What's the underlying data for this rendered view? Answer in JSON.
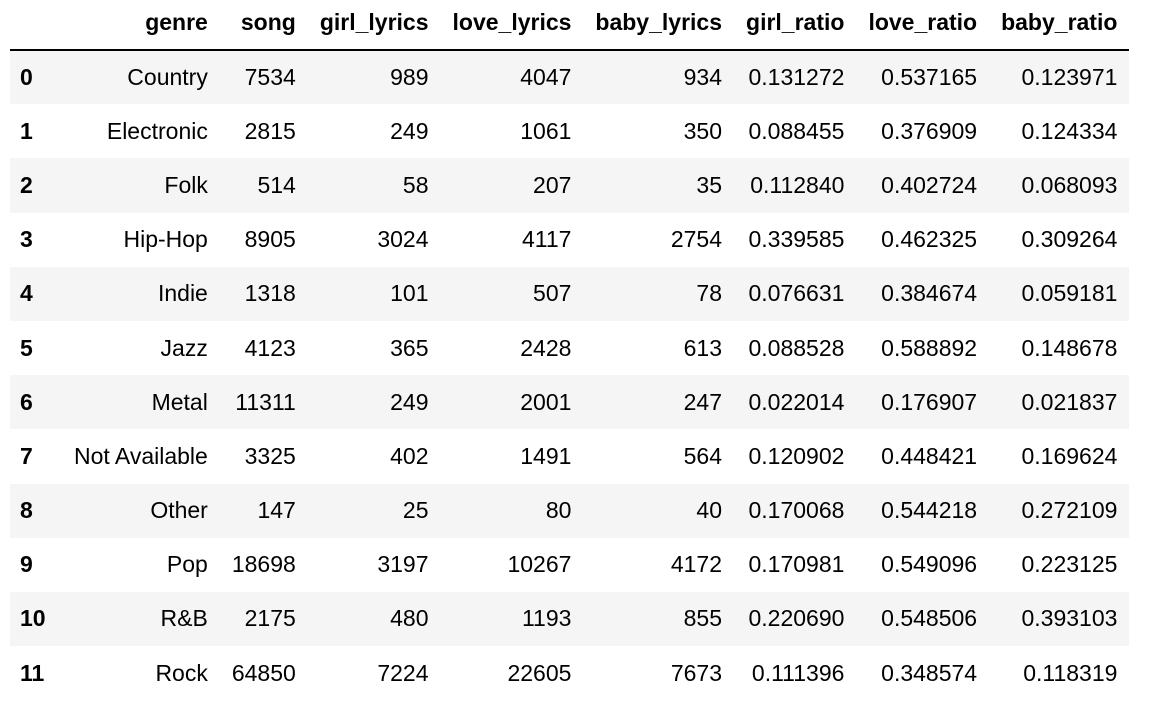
{
  "table": {
    "index_header": "",
    "columns": [
      "genre",
      "song",
      "girl_lyrics",
      "love_lyrics",
      "baby_lyrics",
      "girl_ratio",
      "love_ratio",
      "baby_ratio"
    ],
    "rows": [
      {
        "index": "0",
        "cells": [
          "Country",
          "7534",
          "989",
          "4047",
          "934",
          "0.131272",
          "0.537165",
          "0.123971"
        ]
      },
      {
        "index": "1",
        "cells": [
          "Electronic",
          "2815",
          "249",
          "1061",
          "350",
          "0.088455",
          "0.376909",
          "0.124334"
        ]
      },
      {
        "index": "2",
        "cells": [
          "Folk",
          "514",
          "58",
          "207",
          "35",
          "0.112840",
          "0.402724",
          "0.068093"
        ]
      },
      {
        "index": "3",
        "cells": [
          "Hip-Hop",
          "8905",
          "3024",
          "4117",
          "2754",
          "0.339585",
          "0.462325",
          "0.309264"
        ]
      },
      {
        "index": "4",
        "cells": [
          "Indie",
          "1318",
          "101",
          "507",
          "78",
          "0.076631",
          "0.384674",
          "0.059181"
        ]
      },
      {
        "index": "5",
        "cells": [
          "Jazz",
          "4123",
          "365",
          "2428",
          "613",
          "0.088528",
          "0.588892",
          "0.148678"
        ]
      },
      {
        "index": "6",
        "cells": [
          "Metal",
          "11311",
          "249",
          "2001",
          "247",
          "0.022014",
          "0.176907",
          "0.021837"
        ]
      },
      {
        "index": "7",
        "cells": [
          "Not Available",
          "3325",
          "402",
          "1491",
          "564",
          "0.120902",
          "0.448421",
          "0.169624"
        ]
      },
      {
        "index": "8",
        "cells": [
          "Other",
          "147",
          "25",
          "80",
          "40",
          "0.170068",
          "0.544218",
          "0.272109"
        ]
      },
      {
        "index": "9",
        "cells": [
          "Pop",
          "18698",
          "3197",
          "10267",
          "4172",
          "0.170981",
          "0.549096",
          "0.223125"
        ]
      },
      {
        "index": "10",
        "cells": [
          "R&B",
          "2175",
          "480",
          "1193",
          "855",
          "0.220690",
          "0.548506",
          "0.393103"
        ]
      },
      {
        "index": "11",
        "cells": [
          "Rock",
          "64850",
          "7224",
          "22605",
          "7673",
          "0.111396",
          "0.348574",
          "0.118319"
        ]
      }
    ]
  },
  "colors": {
    "striped_row": "#f5f5f5",
    "plain_row": "#ffffff",
    "header_rule": "#000000"
  }
}
